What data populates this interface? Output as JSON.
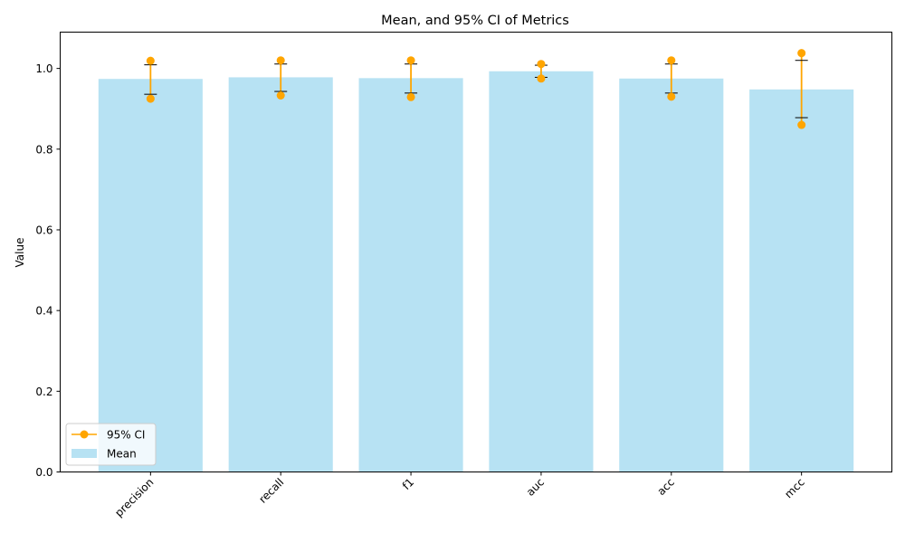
{
  "chart_data": {
    "type": "bar",
    "title": "Mean, and 95% CI of Metrics",
    "xlabel": "",
    "ylabel": "Value",
    "ylim": [
      0,
      1.09
    ],
    "yticks": [
      "0.0",
      "0.2",
      "0.4",
      "0.6",
      "0.8",
      "1.0"
    ],
    "categories": [
      "precision",
      "recall",
      "f1",
      "auc",
      "acc",
      "mcc"
    ],
    "series": [
      {
        "name": "Mean",
        "values": [
          0.974,
          0.978,
          0.976,
          0.993,
          0.975,
          0.948
        ],
        "color": "#87ceeb"
      },
      {
        "name": "95% CI",
        "lower": [
          0.925,
          0.933,
          0.929,
          0.975,
          0.93,
          0.86
        ],
        "upper": [
          1.019,
          1.02,
          1.02,
          1.011,
          1.02,
          1.038
        ],
        "color": "#ffa500"
      }
    ],
    "error_bars": {
      "lower": [
        0.936,
        0.943,
        0.939,
        0.978,
        0.939,
        0.878
      ],
      "upper": [
        1.009,
        1.011,
        1.011,
        1.008,
        1.011,
        1.02
      ],
      "color": "#000000"
    },
    "legend": {
      "placement": "lower-left",
      "entries": [
        "95% CI",
        "Mean"
      ]
    },
    "grid": false
  }
}
